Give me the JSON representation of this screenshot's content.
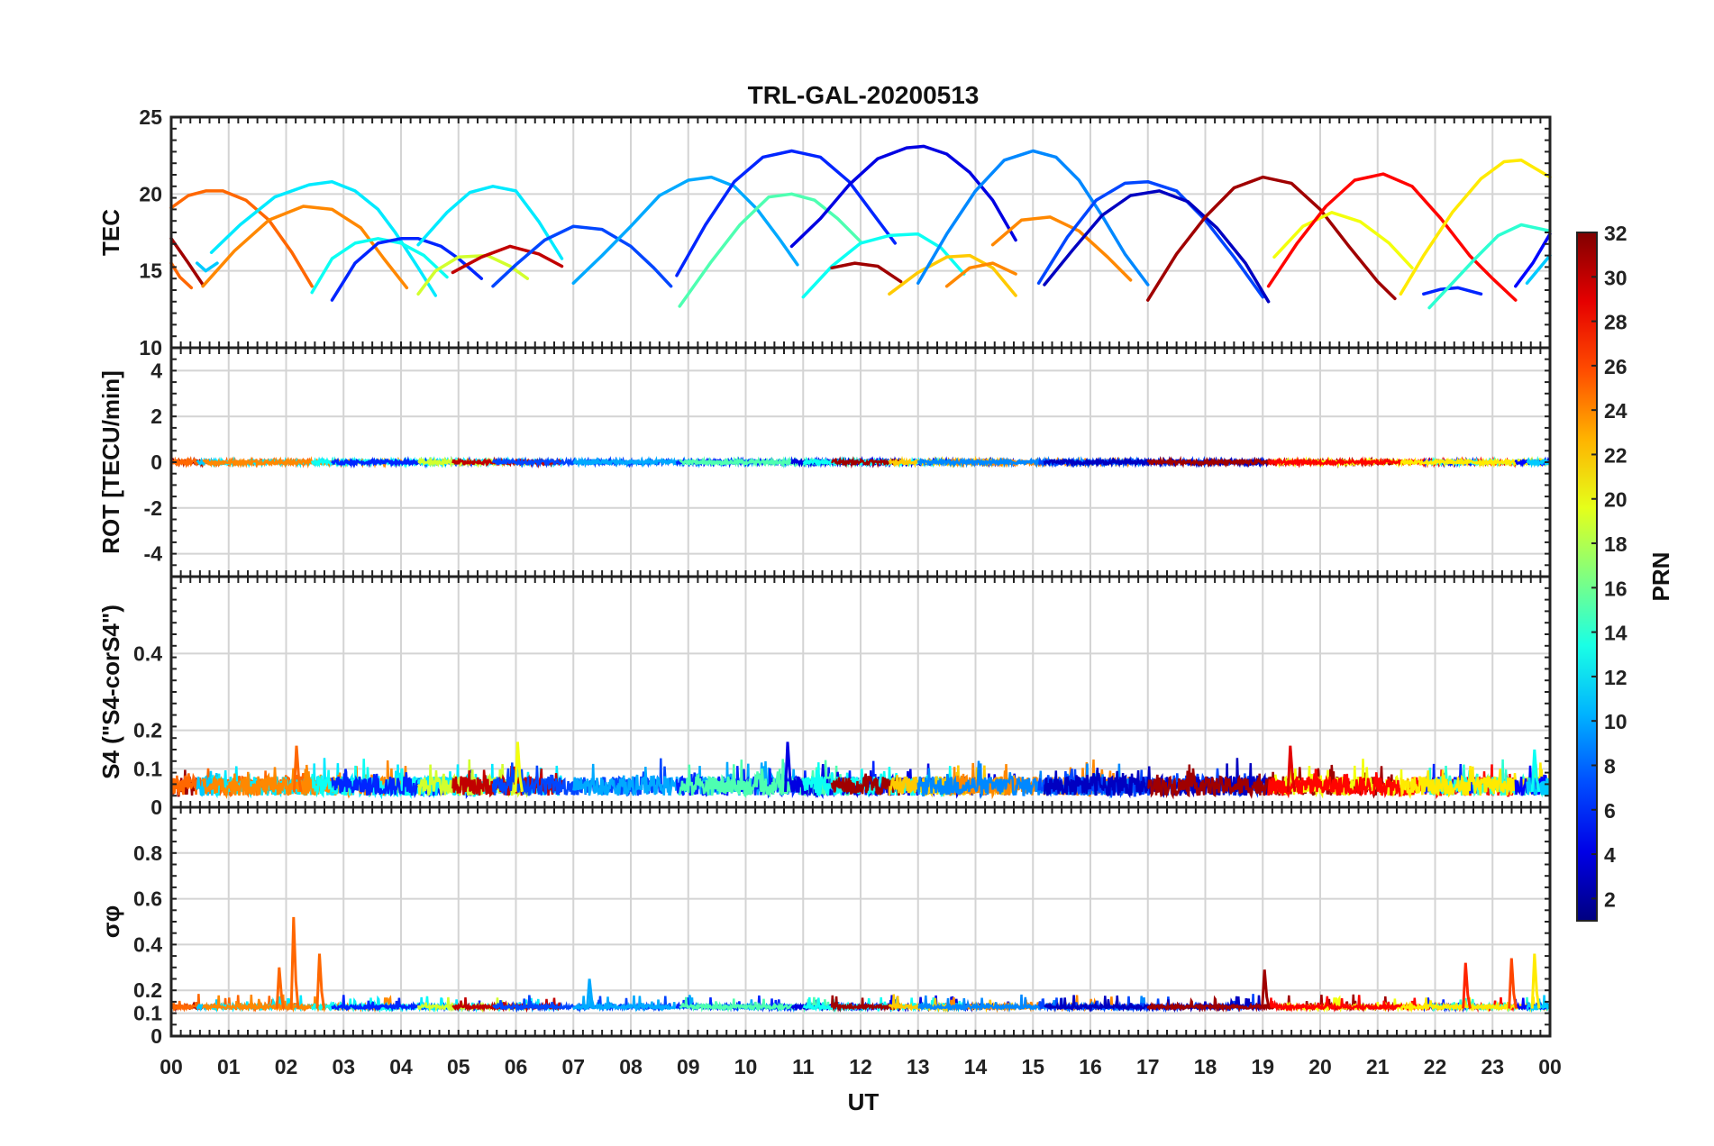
{
  "figure": {
    "title": "TRL-GAL-20200513",
    "xlabel": "UT",
    "xticks": [
      "00",
      "01",
      "02",
      "03",
      "04",
      "05",
      "06",
      "07",
      "08",
      "09",
      "10",
      "11",
      "12",
      "13",
      "14",
      "15",
      "16",
      "17",
      "18",
      "19",
      "20",
      "21",
      "22",
      "23",
      "00"
    ]
  },
  "colorbar": {
    "label": "PRN",
    "range": [
      1,
      32
    ],
    "ticks": [
      2,
      4,
      6,
      8,
      10,
      12,
      14,
      16,
      18,
      20,
      22,
      24,
      26,
      28,
      30,
      32
    ],
    "colormap": "jet"
  },
  "chart_data": [
    {
      "type": "line",
      "panel": "tec",
      "ylabel": "TEC",
      "ylim": [
        10,
        25
      ],
      "yticks": [
        10,
        15,
        20,
        25
      ],
      "grid": true,
      "x_units": "hours UT",
      "series": [
        {
          "prn": 31,
          "x": [
            0.0,
            0.3,
            0.55
          ],
          "y": [
            17.1,
            15.5,
            14.1
          ]
        },
        {
          "prn": 25,
          "x": [
            0.0,
            0.15,
            0.35
          ],
          "y": [
            15.5,
            14.6,
            13.9
          ]
        },
        {
          "prn": 25,
          "x": [
            0.0,
            0.3,
            0.6,
            0.9,
            1.3,
            1.7,
            2.1,
            2.45
          ],
          "y": [
            19.1,
            19.9,
            20.2,
            20.2,
            19.6,
            18.3,
            16.2,
            14.0
          ]
        },
        {
          "prn": 11,
          "x": [
            0.45,
            0.6,
            0.8
          ],
          "y": [
            15.5,
            15.0,
            15.5
          ]
        },
        {
          "prn": 12,
          "x": [
            0.7,
            1.2,
            1.8,
            2.4,
            2.8,
            3.2,
            3.6,
            3.9,
            4.3,
            4.6
          ],
          "y": [
            16.2,
            18.0,
            19.8,
            20.6,
            20.8,
            20.2,
            19.0,
            17.5,
            15.2,
            13.4
          ]
        },
        {
          "prn": 24,
          "x": [
            0.55,
            1.1,
            1.7,
            2.3,
            2.8,
            3.3,
            3.7,
            4.1
          ],
          "y": [
            14.0,
            16.3,
            18.3,
            19.2,
            19.0,
            17.8,
            15.8,
            13.9
          ]
        },
        {
          "prn": 13,
          "x": [
            2.45,
            2.8,
            3.2,
            3.6,
            4.0,
            4.4,
            4.8
          ],
          "y": [
            13.6,
            15.8,
            16.8,
            17.1,
            16.8,
            16.0,
            14.6
          ]
        },
        {
          "prn": 6,
          "x": [
            2.8,
            3.2,
            3.6,
            4.0,
            4.3,
            4.7,
            5.0,
            5.4
          ],
          "y": [
            13.1,
            15.5,
            16.8,
            17.1,
            17.1,
            16.6,
            15.8,
            14.5
          ]
        },
        {
          "prn": 12,
          "x": [
            4.3,
            4.8,
            5.2,
            5.6,
            6.0,
            6.4,
            6.8
          ],
          "y": [
            16.7,
            18.8,
            20.1,
            20.5,
            20.2,
            18.2,
            15.8
          ]
        },
        {
          "prn": 19,
          "x": [
            4.3,
            4.6,
            5.0,
            5.5,
            5.9,
            6.2
          ],
          "y": [
            13.5,
            15.0,
            15.9,
            16.0,
            15.3,
            14.5
          ]
        },
        {
          "prn": 30,
          "x": [
            4.9,
            5.4,
            5.9,
            6.4,
            6.8
          ],
          "y": [
            14.9,
            15.9,
            16.6,
            16.1,
            15.3
          ]
        },
        {
          "prn": 7,
          "x": [
            5.6,
            6.0,
            6.5,
            7.0,
            7.5,
            8.0,
            8.4,
            8.7
          ],
          "y": [
            14.0,
            15.4,
            17.0,
            17.9,
            17.7,
            16.6,
            15.2,
            14.0
          ]
        },
        {
          "prn": 10,
          "x": [
            7.0,
            7.5,
            8.0,
            8.5,
            9.0,
            9.4,
            9.8,
            10.2,
            10.6,
            10.9
          ],
          "y": [
            14.2,
            16.0,
            17.9,
            19.9,
            20.9,
            21.1,
            20.5,
            19.0,
            17.0,
            15.4
          ]
        },
        {
          "prn": 6,
          "x": [
            8.8,
            9.3,
            9.8,
            10.3,
            10.8,
            11.3,
            11.8,
            12.3,
            12.6
          ],
          "y": [
            14.7,
            18.0,
            20.8,
            22.4,
            22.8,
            22.4,
            20.8,
            18.3,
            16.8
          ]
        },
        {
          "prn": 15,
          "x": [
            8.85,
            9.4,
            9.9,
            10.4,
            10.8,
            11.2,
            11.6,
            12.0
          ],
          "y": [
            12.7,
            15.6,
            18.0,
            19.8,
            20.0,
            19.6,
            18.4,
            16.9
          ]
        },
        {
          "prn": 4,
          "x": [
            10.8,
            11.3,
            11.8,
            12.3,
            12.8,
            13.1,
            13.5,
            13.9,
            14.3,
            14.7
          ],
          "y": [
            16.6,
            18.4,
            20.6,
            22.3,
            23.0,
            23.1,
            22.6,
            21.4,
            19.6,
            17.0
          ]
        },
        {
          "prn": 13,
          "x": [
            11.0,
            11.5,
            12.0,
            12.5,
            13.0,
            13.4,
            13.8
          ],
          "y": [
            13.3,
            15.3,
            16.8,
            17.3,
            17.4,
            16.5,
            14.8
          ]
        },
        {
          "prn": 31,
          "x": [
            11.5,
            11.9,
            12.3,
            12.7
          ],
          "y": [
            15.2,
            15.5,
            15.3,
            14.3
          ]
        },
        {
          "prn": 22,
          "x": [
            12.5,
            13.0,
            13.5,
            13.9,
            14.3,
            14.7
          ],
          "y": [
            13.5,
            14.9,
            15.9,
            16.0,
            15.2,
            13.4
          ]
        },
        {
          "prn": 24,
          "x": [
            13.5,
            13.9,
            14.3,
            14.7
          ],
          "y": [
            14.0,
            15.2,
            15.5,
            14.8
          ]
        },
        {
          "prn": 24,
          "x": [
            14.3,
            14.8,
            15.3,
            15.8,
            16.3,
            16.7
          ],
          "y": [
            16.7,
            18.3,
            18.5,
            17.6,
            15.9,
            14.4
          ]
        },
        {
          "prn": 9,
          "x": [
            13.0,
            13.5,
            14.0,
            14.5,
            15.0,
            15.4,
            15.8,
            16.2,
            16.6,
            17.0
          ],
          "y": [
            14.2,
            17.4,
            20.2,
            22.2,
            22.8,
            22.4,
            20.9,
            18.6,
            16.1,
            14.1
          ]
        },
        {
          "prn": 7,
          "x": [
            15.1,
            15.6,
            16.1,
            16.6,
            17.0,
            17.5,
            18.0,
            18.5,
            19.0
          ],
          "y": [
            14.2,
            17.2,
            19.6,
            20.7,
            20.8,
            20.2,
            18.3,
            15.9,
            13.3
          ]
        },
        {
          "prn": 3,
          "x": [
            15.2,
            15.7,
            16.2,
            16.7,
            17.2,
            17.7,
            18.2,
            18.7,
            19.1
          ],
          "y": [
            14.1,
            16.4,
            18.6,
            19.9,
            20.2,
            19.5,
            17.8,
            15.5,
            13.0
          ]
        },
        {
          "prn": 31,
          "x": [
            17.0,
            17.5,
            18.0,
            18.5,
            19.0,
            19.5,
            20.0,
            20.5,
            21.0,
            21.3
          ],
          "y": [
            13.1,
            16.1,
            18.5,
            20.4,
            21.1,
            20.7,
            19.0,
            16.6,
            14.3,
            13.2
          ]
        },
        {
          "prn": 20,
          "x": [
            19.2,
            19.7,
            20.2,
            20.7,
            21.2,
            21.6
          ],
          "y": [
            15.9,
            17.9,
            18.8,
            18.2,
            16.8,
            15.2
          ]
        },
        {
          "prn": 28,
          "x": [
            19.1,
            19.6,
            20.1,
            20.6,
            21.1,
            21.6,
            22.1,
            22.6,
            23.0,
            23.4
          ],
          "y": [
            14.0,
            16.8,
            19.2,
            20.9,
            21.3,
            20.5,
            18.4,
            16.0,
            14.5,
            13.1
          ]
        },
        {
          "prn": 6,
          "x": [
            21.8,
            22.1,
            22.4,
            22.8
          ],
          "y": [
            13.5,
            13.8,
            13.9,
            13.5
          ]
        },
        {
          "prn": 14,
          "x": [
            21.9,
            22.3,
            22.7,
            23.1,
            23.5,
            24.0
          ],
          "y": [
            12.6,
            14.2,
            15.8,
            17.3,
            18.0,
            17.6
          ]
        },
        {
          "prn": 21,
          "x": [
            21.4,
            21.8,
            22.3,
            22.8,
            23.2,
            23.5,
            24.0
          ],
          "y": [
            13.5,
            16.0,
            18.8,
            21.0,
            22.1,
            22.2,
            21.1
          ]
        },
        {
          "prn": 5,
          "x": [
            23.4,
            23.7,
            24.0
          ],
          "y": [
            14.0,
            15.5,
            17.4
          ]
        },
        {
          "prn": 11,
          "x": [
            23.6,
            24.0
          ],
          "y": [
            14.2,
            16.0
          ]
        }
      ]
    },
    {
      "type": "line",
      "panel": "rot",
      "ylabel": "ROT [TECU/min]",
      "ylim": [
        -5,
        5
      ],
      "yticks": [
        -4,
        -2,
        0,
        2,
        4
      ],
      "grid": true,
      "description_values": "all PRNs near 0 TECU/min (|ROT| < 0.1) across the day"
    },
    {
      "type": "line",
      "panel": "s4",
      "ylabel": "S4 (\"S4-corS4\")",
      "ylim": [
        0,
        0.6
      ],
      "yticks": [
        0,
        0.1,
        0.2,
        0.4
      ],
      "grid": true,
      "typical_range": [
        0.02,
        0.12
      ],
      "peaks": [
        {
          "x": 2.2,
          "y": 0.16,
          "prn": 25
        },
        {
          "x": 6.05,
          "y": 0.17,
          "prn": 20
        },
        {
          "x": 10.75,
          "y": 0.17,
          "prn": 4
        },
        {
          "x": 19.5,
          "y": 0.16,
          "prn": 29
        },
        {
          "x": 23.75,
          "y": 0.15,
          "prn": 13
        }
      ]
    },
    {
      "type": "line",
      "panel": "sigma_phi",
      "ylabel": "σφ",
      "ylim": [
        0,
        1
      ],
      "yticks": [
        0,
        0.1,
        0.2,
        0.4,
        0.6,
        0.8
      ],
      "grid": true,
      "baseline": 0.12,
      "peaks": [
        {
          "x": 2.15,
          "y": 0.52,
          "prn": 25
        },
        {
          "x": 2.6,
          "y": 0.36,
          "prn": 25
        },
        {
          "x": 1.9,
          "y": 0.3,
          "prn": 25
        },
        {
          "x": 7.3,
          "y": 0.25,
          "prn": 10
        },
        {
          "x": 19.05,
          "y": 0.29,
          "prn": 31
        },
        {
          "x": 22.55,
          "y": 0.32,
          "prn": 27
        },
        {
          "x": 23.35,
          "y": 0.34,
          "prn": 26
        },
        {
          "x": 23.75,
          "y": 0.36,
          "prn": 21
        }
      ]
    }
  ]
}
